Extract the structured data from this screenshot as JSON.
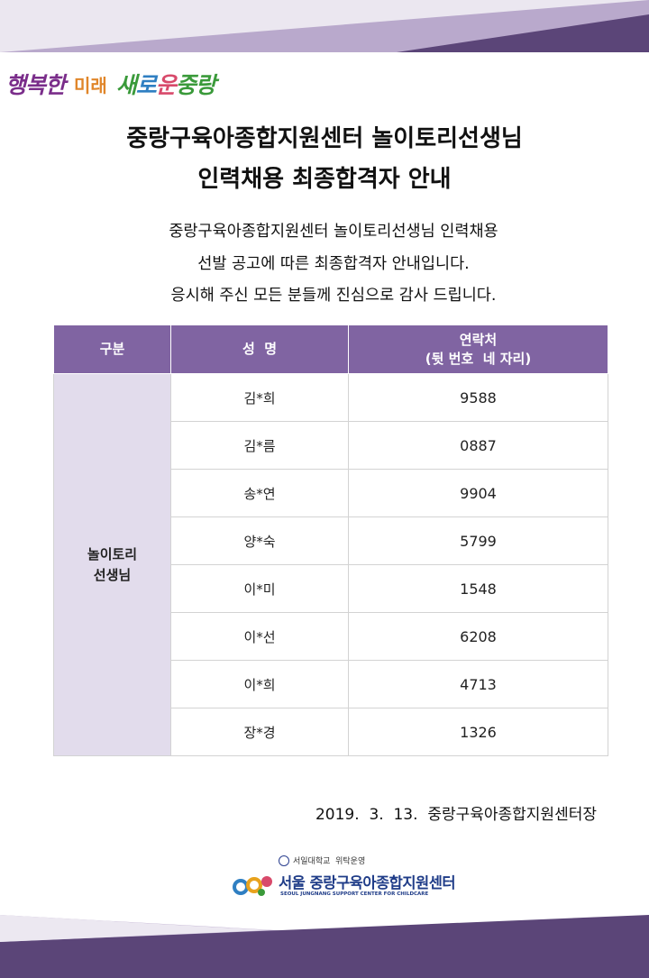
{
  "slogan": {
    "part1": "행복한",
    "part2": "미래",
    "part3a": "새",
    "part3b": "로",
    "part3c": "운",
    "part3d": "중랑"
  },
  "title": {
    "line1": "중랑구육아종합지원센터 놀이토리선생님",
    "line2": "인력채용 최종합격자 안내"
  },
  "intro": {
    "line1": "중랑구육아종합지원센터 놀이토리선생님 인력채용",
    "line2": "선발 공고에 따른 최종합격자 안내입니다.",
    "line3": "응시해 주신 모든 분들께 진심으로 감사 드립니다."
  },
  "table": {
    "headers": {
      "category": "구분",
      "name": "성  명",
      "contact_line1": "연락처",
      "contact_line2": "(뒷 번호  네 자리)"
    },
    "category_line1": "놀이토리",
    "category_line2": "선생님",
    "rows": [
      {
        "name": "김*희",
        "phone": "9588"
      },
      {
        "name": "김*름",
        "phone": "0887"
      },
      {
        "name": "송*연",
        "phone": "9904"
      },
      {
        "name": "양*숙",
        "phone": "5799"
      },
      {
        "name": "이*미",
        "phone": "1548"
      },
      {
        "name": "이*선",
        "phone": "6208"
      },
      {
        "name": "이*희",
        "phone": "4713"
      },
      {
        "name": "장*경",
        "phone": "1326"
      }
    ]
  },
  "footer": {
    "date_line": "2019.  3.  13.  중랑구육아종합지원센터장",
    "org_sub": "서일대학교  위탁운영",
    "org_name": "서울 중랑구육아종합지원센터",
    "org_en": "SEOUL JUNGNANG SUPPORT CENTER FOR CHILDCARE"
  },
  "colors": {
    "header_purple": "#8064a2",
    "category_lavender": "#e2dcec",
    "band_dark": "#5b4578",
    "band_light": "#b9a9cc"
  }
}
